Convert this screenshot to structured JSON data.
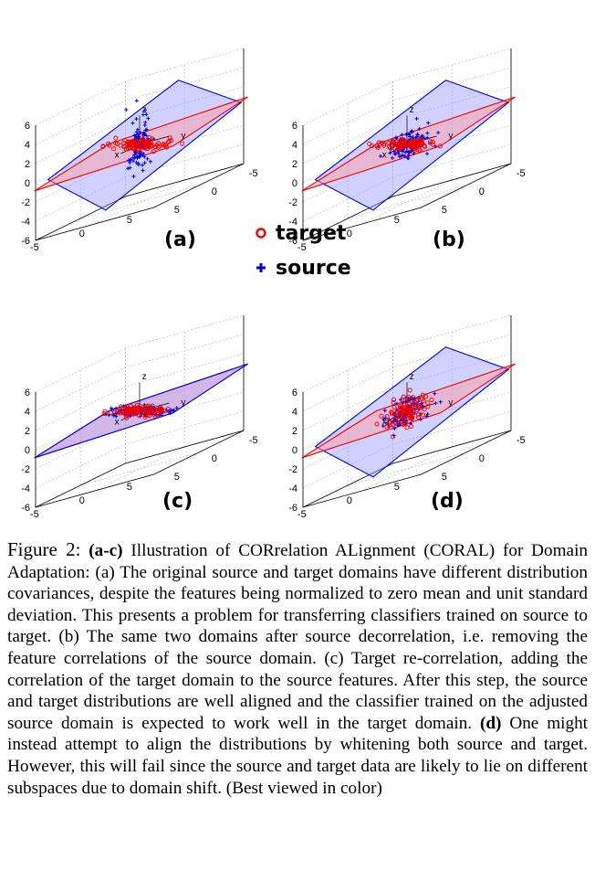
{
  "legend": {
    "target_label": "target",
    "source_label": "source",
    "target_color": "#ee0000",
    "source_color": "#0000dd"
  },
  "chart_data": [
    {
      "type": "scatter3d",
      "panel_label": "(a)",
      "axis_labels": {
        "x": "x",
        "y": "y",
        "z": "z"
      },
      "x_ticks": [
        "-5",
        "0",
        "5"
      ],
      "y_ticks": [
        "-5",
        "0",
        "5"
      ],
      "z_ticks": [
        "6",
        "4",
        "2",
        "0",
        "-2",
        "-4",
        "-6"
      ],
      "zlim": [
        -6,
        6
      ],
      "series": [
        {
          "name": "target",
          "marker": "circle",
          "color": "#ee0000",
          "plane_color": "#ff9999",
          "plane": "horizontal",
          "spread": "wide-horizontal"
        },
        {
          "name": "source",
          "marker": "plus",
          "color": "#0000dd",
          "plane_color": "#9999ff",
          "plane": "tilted",
          "spread": "tall-vertical"
        }
      ]
    },
    {
      "type": "scatter3d",
      "panel_label": "(b)",
      "axis_labels": {
        "x": "x",
        "y": "y",
        "z": "z"
      },
      "x_ticks": [
        "-5",
        "0",
        "5"
      ],
      "y_ticks": [
        "-5",
        "0",
        "5"
      ],
      "z_ticks": [
        "6",
        "4",
        "2",
        "0",
        "-2",
        "-4",
        "-6"
      ],
      "zlim": [
        -6,
        6
      ],
      "series": [
        {
          "name": "target",
          "marker": "circle",
          "color": "#ee0000",
          "plane_color": "#ff9999",
          "plane": "horizontal",
          "spread": "wide-horizontal"
        },
        {
          "name": "source",
          "marker": "plus",
          "color": "#0000dd",
          "plane_color": "#9999ff",
          "plane": "tilted",
          "spread": "round"
        }
      ]
    },
    {
      "type": "scatter3d",
      "panel_label": "(c)",
      "axis_labels": {
        "x": "x",
        "y": "y",
        "z": "z"
      },
      "x_ticks": [
        "-5",
        "0",
        "5"
      ],
      "y_ticks": [
        "-5",
        "0",
        "5"
      ],
      "z_ticks": [
        "6",
        "4",
        "2",
        "0",
        "-2",
        "-4",
        "-6"
      ],
      "zlim": [
        -6,
        6
      ],
      "series": [
        {
          "name": "target",
          "marker": "circle",
          "color": "#ee0000",
          "plane_color": "#ff9999",
          "plane": "horizontal",
          "spread": "wide-horizontal"
        },
        {
          "name": "source",
          "marker": "plus",
          "color": "#0000dd",
          "plane_color": "#9999ff",
          "plane": "horizontal",
          "spread": "wide-horizontal"
        }
      ]
    },
    {
      "type": "scatter3d",
      "panel_label": "(d)",
      "axis_labels": {
        "x": "x",
        "y": "y",
        "z": "z"
      },
      "x_ticks": [
        "-5",
        "0",
        "5"
      ],
      "y_ticks": [
        "-5",
        "0",
        "5"
      ],
      "z_ticks": [
        "6",
        "4",
        "2",
        "0",
        "-2",
        "-4",
        "-6"
      ],
      "zlim": [
        -6,
        6
      ],
      "series": [
        {
          "name": "target",
          "marker": "circle",
          "color": "#ee0000",
          "plane_color": "#ff9999",
          "plane": "horizontal",
          "spread": "round"
        },
        {
          "name": "source",
          "marker": "plus",
          "color": "#0000dd",
          "plane_color": "#9999ff",
          "plane": "tilted",
          "spread": "round"
        }
      ]
    }
  ],
  "caption": {
    "figure_label": "Figure 2:",
    "bold_ac": "(a-c)",
    "part1": " Illustration of CORrelation ALignment (CORAL) for Domain Adaptation: (a) The original source and target domains have different distribution covariances, despite the features being normalized to zero mean and unit standard deviation. This presents a problem for transferring classifiers trained on source to target. (b) The same two domains after source decorrelation, i.e. removing the feature correlations of the source domain. (c) Target re-correlation, adding the correlation of the target domain to the source features. After this step, the source and target distributions are well aligned and the classifier trained on the adjusted source domain is expected to work well in the target domain. ",
    "bold_d": "(d)",
    "part2": " One might instead attempt to align the distributions by whitening both source and target. However, this will fail since the source and target data are likely to lie on different subspaces due to domain shift. (Best viewed in color)"
  }
}
